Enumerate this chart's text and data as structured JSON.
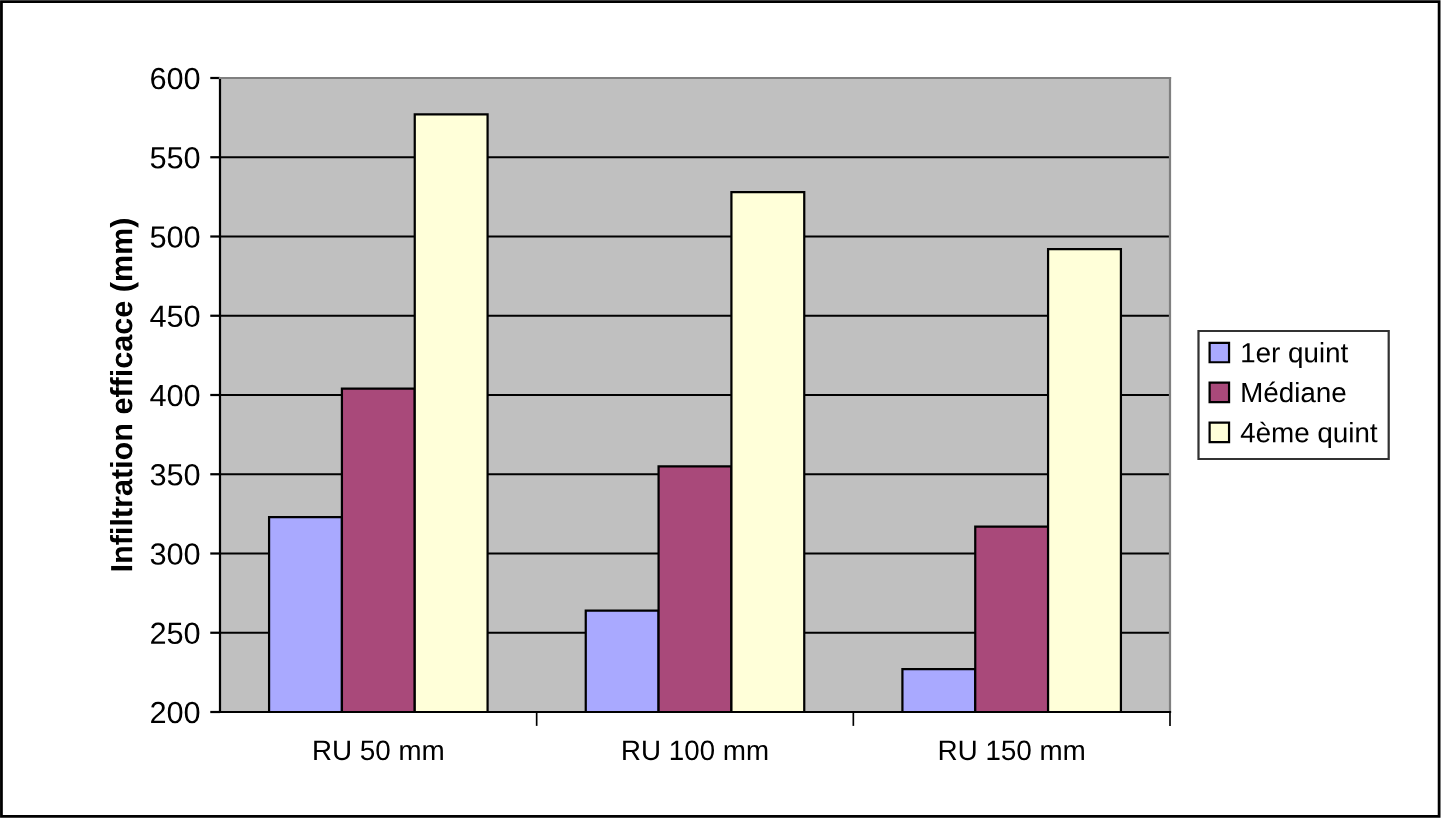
{
  "chart_data": {
    "type": "bar",
    "ylabel": "Infiltration efficace (mm)",
    "categories": [
      "RU 50 mm",
      "RU 100 mm",
      "RU 150 mm"
    ],
    "series": [
      {
        "name": "1er quint",
        "color": "#a9a9ff",
        "values": [
          323,
          264,
          227
        ]
      },
      {
        "name": "Médiane",
        "color": "#a9497a",
        "values": [
          404,
          355,
          317
        ]
      },
      {
        "name": "4ème quint",
        "color": "#ffffd9",
        "values": [
          577,
          528,
          492
        ]
      }
    ],
    "ylim": [
      200,
      600
    ],
    "yticks": [
      200,
      250,
      300,
      350,
      400,
      450,
      500,
      550,
      600
    ],
    "grid": "y",
    "legend": "right"
  }
}
